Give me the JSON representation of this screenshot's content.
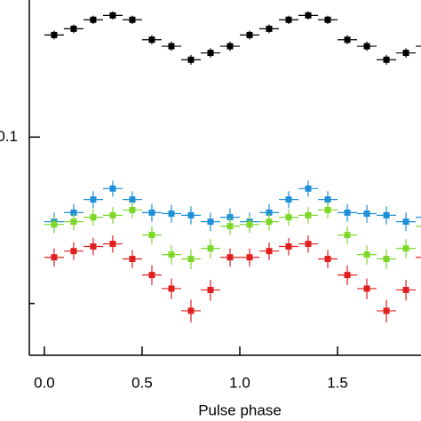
{
  "chart_data": {
    "type": "scatter",
    "xlabel": "Pulse phase",
    "x": [
      0.05,
      0.15,
      0.25,
      0.35,
      0.45,
      0.55,
      0.65,
      0.75,
      0.85,
      0.95,
      1.05,
      1.15,
      1.25,
      1.35,
      1.45,
      1.55,
      1.65,
      1.75,
      1.85,
      1.95
    ],
    "xerr": 0.05,
    "series": [
      {
        "color": "#000000",
        "yerr": 0.0028,
        "values": [
          0.153,
          0.157,
          0.163,
          0.166,
          0.163,
          0.15,
          0.146,
          0.138,
          0.142,
          0.146,
          0.153,
          0.157,
          0.163,
          0.166,
          0.163,
          0.15,
          0.146,
          0.138,
          0.142,
          0.146
        ]
      },
      {
        "color": "#1e90d8",
        "yerr": 0.0027,
        "values": [
          0.0703,
          0.073,
          0.0771,
          0.0807,
          0.0771,
          0.073,
          0.0727,
          0.0722,
          0.0703,
          0.0716,
          0.0703,
          0.073,
          0.0771,
          0.0807,
          0.0771,
          0.073,
          0.0727,
          0.0722,
          0.0703,
          0.0716
        ]
      },
      {
        "color": "#7ed82a",
        "yerr": 0.0025,
        "values": [
          0.0695,
          0.0703,
          0.0716,
          0.0722,
          0.0738,
          0.0665,
          0.0613,
          0.0602,
          0.0629,
          0.069,
          0.0695,
          0.0703,
          0.0716,
          0.0722,
          0.0738,
          0.0665,
          0.0613,
          0.0602,
          0.0629,
          0.069
        ]
      },
      {
        "color": "#e02020",
        "yerr": 0.0023,
        "values": [
          0.0606,
          0.0622,
          0.0634,
          0.0641,
          0.0602,
          0.0563,
          0.0532,
          0.0485,
          0.0529,
          0.0606,
          0.0606,
          0.0622,
          0.0634,
          0.0641,
          0.0602,
          0.0563,
          0.0532,
          0.0485,
          0.0529,
          0.0606
        ]
      }
    ],
    "xlim": [
      -0.077,
      1.927
    ],
    "xticks": [
      {
        "value": 0,
        "label": "0.0"
      },
      0.5,
      {
        "value": 1,
        "label": "1.0"
      },
      1.5
    ],
    "ylim": [
      0.0403,
      0.177
    ],
    "log_y": true,
    "yticks": [
      0.1
    ],
    "minor_yticks": [
      0.05
    ]
  }
}
